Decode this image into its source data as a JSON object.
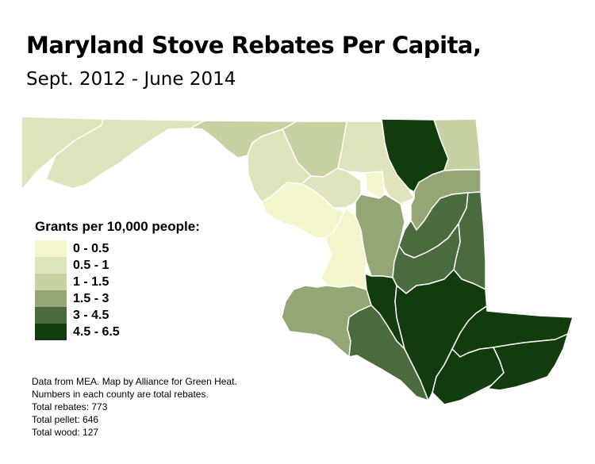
{
  "title": "Maryland Stove Rebates Per Capita,",
  "subtitle": "Sept. 2012 - June 2014",
  "legend": {
    "title": "Grants per 10,000 people:",
    "items": [
      {
        "label": "0 - 0.5",
        "color": "#f4f5cc"
      },
      {
        "label": "0.5 - 1",
        "color": "#dfe4bd"
      },
      {
        "label": "1 - 1.5",
        "color": "#c7d2a2"
      },
      {
        "label": "1.5 - 3",
        "color": "#93a674"
      },
      {
        "label": "3 - 4.5",
        "color": "#4a6b3d"
      },
      {
        "label": "4.5 - 6.5",
        "color": "#123c0d"
      }
    ]
  },
  "notes": [
    "Data from MEA. Map by Alliance for Green Heat.",
    "Numbers in each county are total rebates.",
    "Total rebates: 773",
    "Total pellet: 646",
    "Total wood: 127"
  ]
}
